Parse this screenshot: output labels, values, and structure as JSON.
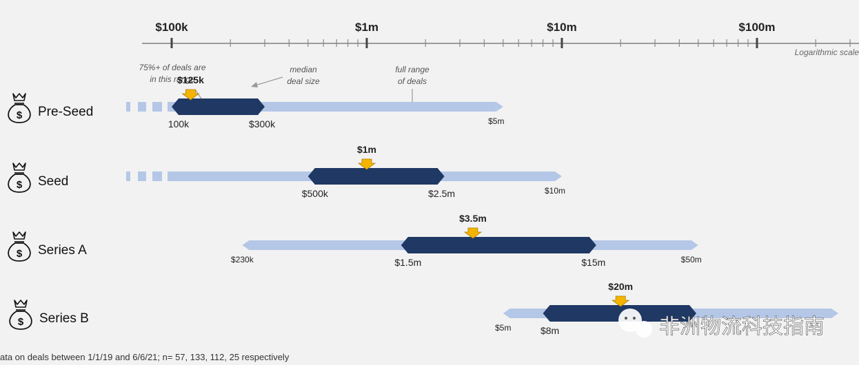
{
  "chart_data": {
    "type": "range",
    "x_scale": "log",
    "xlim": [
      30000,
      500000000
    ],
    "scale_note": "Logarithmic scale",
    "axis_ticks": [
      {
        "label": "$100k",
        "value": 100000
      },
      {
        "label": "$1m",
        "value": 1000000
      },
      {
        "label": "$10m",
        "value": 10000000
      },
      {
        "label": "$100m",
        "value": 100000000
      }
    ],
    "annotations": {
      "core": "75%+ of deals are in this range",
      "median": "median deal size",
      "full": "full range of deals"
    },
    "stages": [
      {
        "name": "Pre-Seed",
        "full_min": 100000,
        "full_max": 5000000,
        "full_min_label": "",
        "full_max_label": "$5m",
        "dashed_left": true,
        "core_min": 100000,
        "core_max": 300000,
        "core_min_label": "100k",
        "core_max_label": "$300k",
        "median": 125000,
        "median_label": "$125k"
      },
      {
        "name": "Seed",
        "full_min": 100000,
        "full_max": 10000000,
        "full_min_label": "",
        "full_max_label": "$10m",
        "dashed_left": true,
        "core_min": 500000,
        "core_max": 2500000,
        "core_min_label": "$500k",
        "core_max_label": "$2.5m",
        "median": 1000000,
        "median_label": "$1m"
      },
      {
        "name": "Series A",
        "full_min": 230000,
        "full_max": 50000000,
        "full_min_label": "$230k",
        "full_max_label": "$50m",
        "dashed_left": false,
        "core_min": 1500000,
        "core_max": 15000000,
        "core_min_label": "$1.5m",
        "core_max_label": "$15m",
        "median": 3500000,
        "median_label": "$3.5m"
      },
      {
        "name": "Series B",
        "full_min": 5000000,
        "full_max": 400000000,
        "full_min_label": "$5m",
        "full_max_label": "",
        "dashed_left": false,
        "core_min": 8000000,
        "core_max": 60000000,
        "core_min_label": "$8m",
        "core_max_label": "",
        "median": 20000000,
        "median_label": "$20m"
      }
    ],
    "footnote": "ata on deals between 1/1/19 and 6/6/21; n= 57, 133, 112, 25 respectively"
  },
  "watermark": "非洲物流科技指南",
  "colors": {
    "full": "#b4c7e7",
    "core": "#1f3864",
    "median": "#f4b400",
    "median_border": "#b08000",
    "axis": "#7f7f7f",
    "text": "#222222",
    "note": "#555555"
  }
}
